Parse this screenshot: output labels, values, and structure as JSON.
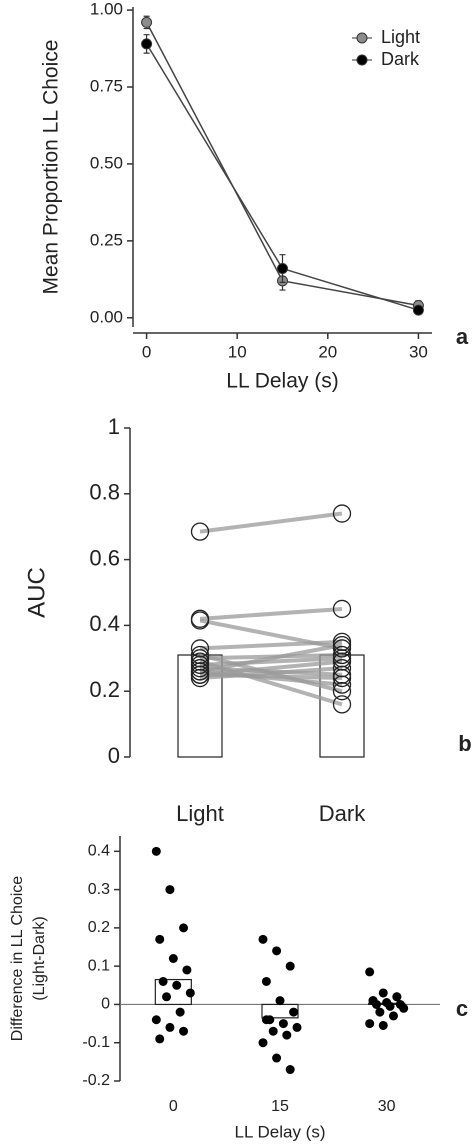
{
  "chart_data": [
    {
      "type": "line",
      "panel_label": "a",
      "xlabel": "LL Delay (s)",
      "ylabel": "Mean Proportion LL Choice",
      "x": [
        0,
        15,
        30
      ],
      "xlim": [
        -1.5,
        31.5
      ],
      "xticks": [
        0,
        10,
        20,
        30
      ],
      "ylim": [
        -0.03,
        1.01
      ],
      "yticks": [
        {
          "value": 0,
          "label": "0.00"
        },
        {
          "value": 0.25,
          "label": "0.25"
        },
        {
          "value": 0.5,
          "label": "0.50"
        },
        {
          "value": 0.75,
          "label": "0.75"
        },
        {
          "value": 1,
          "label": "1.00"
        }
      ],
      "legend": "top-right",
      "series": [
        {
          "name": "Light",
          "color": "#8c8c8c",
          "values": [
            0.96,
            0.12,
            0.04
          ],
          "errors": [
            0.02,
            0.03,
            0.015
          ]
        },
        {
          "name": "Dark",
          "color": "#000000",
          "values": [
            0.89,
            0.16,
            0.025
          ],
          "errors": [
            0.03,
            0.045,
            0.01
          ]
        }
      ]
    },
    {
      "type": "paired_bar",
      "panel_label": "b",
      "ylabel": "AUC",
      "categories": [
        "Light",
        "Dark"
      ],
      "values": [
        0.31,
        0.31
      ],
      "ylim": [
        0,
        1
      ],
      "yticks": [
        0,
        0.2,
        0.4,
        0.6,
        0.8,
        1
      ],
      "points": [
        [
          0.685,
          0.74
        ],
        [
          0.42,
          0.45
        ],
        [
          0.415,
          0.33
        ],
        [
          0.33,
          0.35
        ],
        [
          0.31,
          0.2
        ],
        [
          0.3,
          0.31
        ],
        [
          0.29,
          0.16
        ],
        [
          0.28,
          0.3
        ],
        [
          0.27,
          0.25
        ],
        [
          0.26,
          0.34
        ],
        [
          0.26,
          0.22
        ],
        [
          0.25,
          0.29
        ],
        [
          0.25,
          0.24
        ],
        [
          0.24,
          0.27
        ]
      ]
    },
    {
      "type": "strip_bar",
      "panel_label": "c",
      "xlabel": "LL Delay (s)",
      "ylabel": [
        "Difference in LL Choice",
        "(Light-Dark)"
      ],
      "categories": [
        "0",
        "15",
        "30"
      ],
      "values": [
        0.065,
        -0.035,
        0.003
      ],
      "ylim": [
        -0.2,
        0.44
      ],
      "yticks": [
        -0.2,
        -0.1,
        0,
        0.1,
        0.2,
        0.3,
        0.4
      ],
      "points": [
        [
          0.4,
          0.3,
          0.2,
          0.17,
          0.12,
          0.09,
          0.06,
          0.05,
          0.03,
          0.02,
          -0.02,
          -0.04,
          -0.06,
          -0.07,
          -0.09
        ],
        [
          0.17,
          0.14,
          0.1,
          0.06,
          0.01,
          -0.02,
          -0.04,
          -0.05,
          -0.06,
          -0.07,
          -0.08,
          -0.1,
          -0.14,
          -0.17,
          -0.04
        ],
        [
          0.085,
          0.03,
          0.02,
          0.01,
          0.005,
          0,
          0,
          -0.005,
          -0.01,
          -0.02,
          -0.03,
          -0.05,
          -0.055,
          0.02,
          0.01
        ]
      ]
    }
  ]
}
